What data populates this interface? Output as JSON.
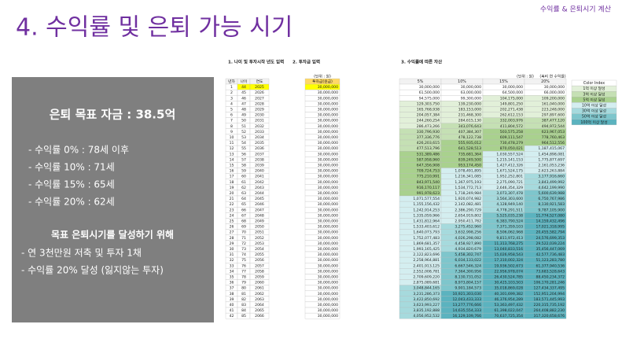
{
  "header": {
    "title": "4. 수익률 및 은퇴 가능 시기",
    "tag": "수익률 & 은퇴시기 계산"
  },
  "summary": {
    "goal": "은퇴 목표 자금 : 38.5억",
    "ages": [
      "- 수익률   0% : 78세 이후",
      "- 수익률 10% : 71세",
      "- 수익률 15% : 65세",
      "- 수익률 20% : 62세"
    ],
    "plan_title": "목표 은퇴시기를 달성하기 위해",
    "plan": [
      "- 연 3천만원 저축 및 투자 1채",
      "- 수익률 20% 달성 (잃지않는 투자)"
    ]
  },
  "input_table": {
    "title": "1. 나이 및 투자시작 년도 입력",
    "title2": "2. 투자금 입력",
    "unit": "(단위 : 원)",
    "headers": [
      "년차",
      "나이",
      "연도"
    ],
    "amount_header": "투자금(원금)",
    "years": [
      1,
      2,
      3,
      4,
      5,
      6,
      7,
      8,
      9,
      10,
      11,
      12,
      13,
      14,
      15,
      16,
      17,
      18,
      19,
      20,
      21,
      22,
      23,
      24,
      25,
      26,
      27,
      28,
      29,
      30,
      31,
      32,
      33,
      34,
      35,
      36,
      37,
      38,
      39,
      40,
      41,
      42
    ],
    "ages": [
      44,
      45,
      46,
      47,
      48,
      49,
      50,
      51,
      52,
      53,
      54,
      55,
      56,
      57,
      58,
      59,
      60,
      61,
      62,
      63,
      64,
      65,
      66,
      67,
      68,
      69,
      70,
      71,
      72,
      73,
      74,
      75,
      76,
      77,
      78,
      79,
      80,
      81,
      82,
      83,
      84,
      85
    ],
    "calendar": [
      2025,
      2026,
      2027,
      2028,
      2029,
      2030,
      2031,
      2032,
      2033,
      2034,
      2035,
      2036,
      2037,
      2038,
      2039,
      2040,
      2041,
      2042,
      2043,
      2044,
      2045,
      2046,
      2047,
      2048,
      2049,
      2050,
      2051,
      2052,
      2053,
      2054,
      2055,
      2056,
      2057,
      2058,
      2059,
      2060,
      2061,
      2062,
      2063,
      2064,
      2065,
      2066
    ],
    "amounts": [
      "30,000,000",
      "30,000,000",
      "30,000,000",
      "30,000,000",
      "30,000,000",
      "30,000,000",
      "30,000,000",
      "30,000,000",
      "30,000,000",
      "30,000,000",
      "30,000,000",
      "30,000,000",
      "30,000,000",
      "30,000,000",
      "30,000,000",
      "30,000,000",
      "30,000,000",
      "30,000,000",
      "30,000,000",
      "30,000,000",
      "30,000,000",
      "30,000,000",
      "30,000,000",
      "30,000,000",
      "30,000,000",
      "30,000,000",
      "30,000,000",
      "30,000,000",
      "30,000,000",
      "30,000,000",
      "30,000,000",
      "30,000,000",
      "30,000,000",
      "30,000,000",
      "30,000,000",
      "30,000,000",
      "30,000,000",
      "30,000,000",
      "30,000,000",
      "30,000,000",
      "30,000,000",
      "30,000,000"
    ]
  },
  "asset_table": {
    "title": "3. 수익률에 따른 자산",
    "unit": "(단위 : 원)",
    "note": "(복리 연 수익률)",
    "headers": [
      "5%",
      "10%",
      "15%",
      "20%"
    ],
    "rows": [
      [
        "30,000,000",
        "30,000,000",
        "30,000,000",
        "30,000,000"
      ],
      [
        "61,500,000",
        "63,000,000",
        "64,500,000",
        "66,000,000"
      ],
      [
        "94,575,000",
        "99,300,000",
        "104,175,000",
        "109,200,000"
      ],
      [
        "129,303,750",
        "139,230,000",
        "149,801,250",
        "161,040,000"
      ],
      [
        "165,768,938",
        "183,153,000",
        "202,271,438",
        "223,248,000"
      ],
      [
        "204,057,384",
        "231,468,300",
        "262,612,153",
        "297,897,600"
      ],
      [
        "244,260,254",
        "284,615,130",
        "332,003,976",
        "387,477,120"
      ],
      [
        "286,473,266",
        "343,076,643",
        "411,804,572",
        "494,972,544"
      ],
      [
        "330,796,930",
        "407,384,307",
        "503,575,258",
        "623,967,053"
      ],
      [
        "377,336,776",
        "478,122,738",
        "609,111,547",
        "778,760,463"
      ],
      [
        "426,203,615",
        "555,935,012",
        "730,478,279",
        "964,512,556"
      ],
      [
        "477,513,796",
        "641,528,513",
        "870,050,021",
        "1,187,415,067"
      ],
      [
        "531,389,486",
        "735,681,364",
        "1,030,557,524",
        "1,454,898,081"
      ],
      [
        "587,958,960",
        "839,249,500",
        "1,215,141,153",
        "1,775,877,697"
      ],
      [
        "647,356,908",
        "953,174,450",
        "1,427,412,326",
        "2,161,053,236"
      ],
      [
        "709,724,753",
        "1,078,491,895",
        "1,671,524,175",
        "2,623,263,884"
      ],
      [
        "775,210,991",
        "1,216,341,085",
        "1,952,252,801",
        "3,177,916,660"
      ],
      [
        "843,971,540",
        "1,367,975,193",
        "2,275,090,721",
        "3,843,499,992"
      ],
      [
        "916,170,117",
        "1,534,772,713",
        "2,646,354,329",
        "4,642,199,990"
      ],
      [
        "991,978,623",
        "1,718,249,984",
        "3,073,307,478",
        "5,600,639,988"
      ],
      [
        "1,071,577,554",
        "1,920,074,982",
        "3,564,303,600",
        "6,750,767,986"
      ],
      [
        "1,155,156,432",
        "2,142,082,481",
        "4,128,949,140",
        "8,130,921,583"
      ],
      [
        "1,242,914,253",
        "2,386,290,729",
        "4,778,291,511",
        "9,787,105,900"
      ],
      [
        "1,335,059,966",
        "2,654,919,802",
        "5,525,035,238",
        "11,774,527,080"
      ],
      [
        "1,431,812,964",
        "2,950,411,782",
        "6,383,790,524",
        "14,159,432,496"
      ],
      [
        "1,533,403,612",
        "3,275,452,960",
        "7,371,359,103",
        "17,021,318,995"
      ],
      [
        "1,640,073,793",
        "3,632,998,256",
        "8,506,062,968",
        "20,455,582,794"
      ],
      [
        "1,752,077,483",
        "4,026,298,082",
        "9,811,972,413",
        "24,576,699,353"
      ],
      [
        "1,869,681,357",
        "4,458,927,890",
        "11,313,768,275",
        "29,522,039,224"
      ],
      [
        "1,993,165,425",
        "4,934,820,679",
        "13,040,833,516",
        "35,456,447,069"
      ],
      [
        "2,122,823,696",
        "5,458,302,747",
        "15,026,958,543",
        "42,577,736,483"
      ],
      [
        "2,258,964,881",
        "6,034,133,022",
        "17,310,002,324",
        "51,123,283,780"
      ],
      [
        "2,401,913,125",
        "6,667,546,324",
        "19,936,502,673",
        "61,377,940,536"
      ],
      [
        "2,552,008,781",
        "7,364,300,956",
        "22,956,978,074",
        "73,683,528,643"
      ],
      [
        "2,709,609,220",
        "8,130,731,052",
        "26,430,524,785",
        "88,450,234,372"
      ],
      [
        "2,875,089,681",
        "8,973,804,157",
        "30,425,103,503",
        "106,170,281,246"
      ],
      [
        "3,048,844,165",
        "9,901,184,573",
        "35,018,869,028",
        "127,434,337,495"
      ],
      [
        "3,231,286,373",
        "10,921,303,030",
        "40,301,699,382",
        "152,951,204,994"
      ],
      [
        "3,422,850,692",
        "12,043,433,333",
        "46,376,954,289",
        "183,571,445,993"
      ],
      [
        "3,623,993,227",
        "13,277,776,666",
        "53,363,497,432",
        "220,315,735,192"
      ],
      [
        "3,835,192,888",
        "14,635,554,333",
        "61,398,022,047",
        "264,408,882,230"
      ],
      [
        "4,056,952,532",
        "16,129,109,766",
        "70,637,725,354",
        "317,320,658,676"
      ]
    ]
  },
  "color_index": {
    "title": "Color Index",
    "items": [
      {
        "label": "1억 이상 달성",
        "color": "#e2f0d9"
      },
      {
        "label": "3억 이상 달성",
        "color": "#c5e0b4"
      },
      {
        "label": "5억 이상 달성",
        "color": "#a9d18e"
      },
      {
        "label": "10억 이상 달성",
        "color": "#d4eef0"
      },
      {
        "label": "30억 이상 달성",
        "color": "#a6dadd"
      },
      {
        "label": "50억 이상 달성",
        "color": "#7ec6cc"
      },
      {
        "label": "100억 이상 달성",
        "color": "#5bb3bf"
      }
    ]
  }
}
